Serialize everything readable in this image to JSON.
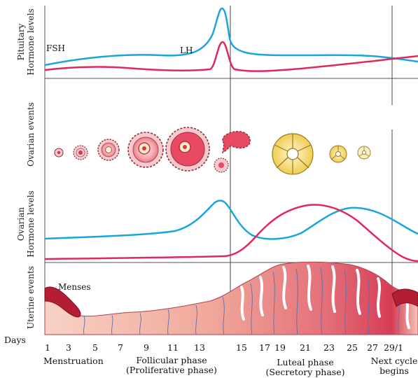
{
  "rows": {
    "pituitary": [
      "Pituitary",
      "Hormone levels"
    ],
    "ovarian_events": "Ovarian events",
    "ovarian_hormones": [
      "Ovarian",
      "Hormone levels"
    ],
    "uterine": "Uterine events"
  },
  "hormone_labels": {
    "fsh": "FSH",
    "lh": "LH"
  },
  "menses_label": "Menses",
  "days_label": "Days",
  "day_ticks": [
    "1",
    "3",
    "5",
    "7",
    "9",
    "11",
    "13",
    "15",
    "17",
    "19",
    "21",
    "23",
    "25",
    "27",
    "29/1"
  ],
  "phases": {
    "menstruation": "Menstruation",
    "follicular": [
      "Follicular phase",
      "(Proliferative phase)"
    ],
    "luteal": [
      "Luteal phase",
      "(Secretory phase)"
    ],
    "next_cycle": [
      "Next cycle",
      "begins"
    ]
  },
  "colors": {
    "blue_curve": "#1aa6dc",
    "red_curve": "#e0285a",
    "uterine_light": "#f6c9bd",
    "uterine_dark": "#d9495b",
    "follicle_pink": "#f3b3b8",
    "corpus_luteum": "#f3d56b"
  }
}
